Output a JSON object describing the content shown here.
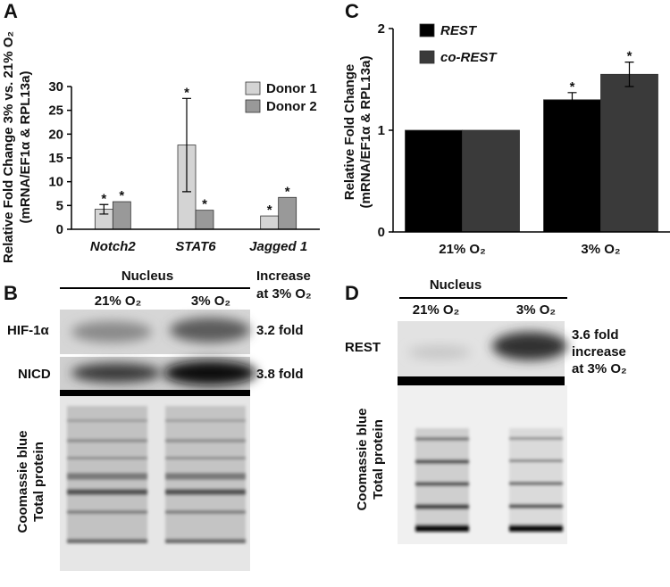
{
  "chart_data": [
    {
      "type": "bar",
      "ylabel": [
        "Relative Fold Change 3% vs. 21% O₂",
        "(mRNA/EF1α & RPL13a)"
      ],
      "categories": [
        "Notch2",
        "STAT6",
        "Jagged 1"
      ],
      "series": [
        {
          "name": "Donor 1",
          "color": "#d4d4d4",
          "values": [
            4.2,
            17.7,
            2.8
          ],
          "errors": [
            1.0,
            9.8,
            null
          ],
          "significance": [
            "*",
            "*",
            "*"
          ]
        },
        {
          "name": "Donor 2",
          "color": "#999999",
          "values": [
            5.8,
            4.0,
            6.7
          ],
          "errors": [
            null,
            null,
            null
          ],
          "significance": [
            "*",
            "*",
            "*"
          ]
        }
      ],
      "ylim": [
        0,
        30
      ],
      "yticks": [
        0,
        5,
        10,
        15,
        20,
        25,
        30
      ],
      "legend": "upper right"
    },
    {
      "type": "bar",
      "ylabel": [
        "Relative Fold Change",
        "(mRNA/EF1α & RPL13a)"
      ],
      "categories": [
        "21% O₂",
        "3% O₂"
      ],
      "series": [
        {
          "name": "REST",
          "color": "#000000",
          "values": [
            1,
            1.3
          ],
          "errors": [
            null,
            0.07
          ],
          "significance": [
            null,
            "*"
          ]
        },
        {
          "name": "co-REST",
          "color": "#3a3a3a",
          "values": [
            1,
            1.55
          ],
          "errors": [
            null,
            0.12
          ],
          "significance": [
            null,
            "*"
          ]
        }
      ],
      "ylim": [
        0,
        2
      ],
      "yticks": [
        0,
        1,
        2
      ],
      "legend": "upper left"
    }
  ],
  "panel_letters": [
    "A",
    "B",
    "C",
    "D"
  ],
  "blot_b": {
    "header": "Nucleus",
    "lanes": [
      "21% O₂",
      "3% O₂"
    ],
    "increase_header": [
      "Increase",
      "at 3% O₂"
    ],
    "rows": [
      {
        "label": "HIF-1α",
        "fold": "3.2 fold"
      },
      {
        "label": "NICD",
        "fold": "3.8 fold"
      }
    ],
    "loading": [
      "Coomassie blue",
      "Total protein"
    ]
  },
  "blot_d": {
    "header": "Nucleus",
    "lanes": [
      "21% O₂",
      "3% O₂"
    ],
    "row": "REST",
    "fold": [
      "3.6 fold",
      "increase",
      "at 3% O₂"
    ],
    "loading": [
      "Coomassie blue",
      "Total protein"
    ]
  }
}
